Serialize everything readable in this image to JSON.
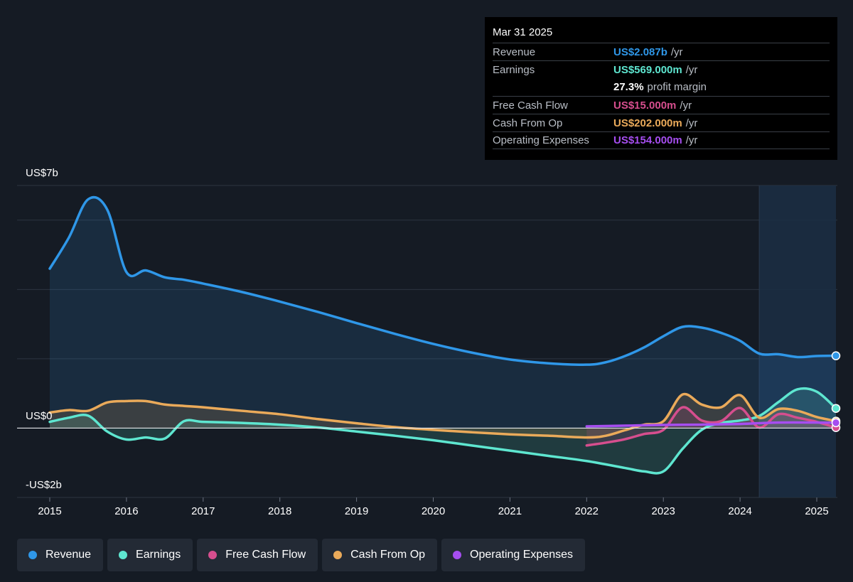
{
  "tooltip": {
    "date": "Mar 31 2025",
    "rows": [
      {
        "label": "Revenue",
        "value": "US$2.087b",
        "unit": "/yr",
        "color": "#2f97e8"
      },
      {
        "label": "Earnings",
        "value": "US$569.000m",
        "unit": "/yr",
        "color": "#5ee6d0"
      },
      {
        "label": "",
        "value": "27.3%",
        "unit": "profit margin",
        "color": "#ffffff"
      },
      {
        "label": "Free Cash Flow",
        "value": "US$15.000m",
        "unit": "/yr",
        "color": "#d64e8e"
      },
      {
        "label": "Cash From Op",
        "value": "US$202.000m",
        "unit": "/yr",
        "color": "#eaaa5a"
      },
      {
        "label": "Operating Expenses",
        "value": "US$154.000m",
        "unit": "/yr",
        "color": "#a64ef0"
      }
    ]
  },
  "legend": [
    {
      "label": "Revenue",
      "color": "#2f97e8"
    },
    {
      "label": "Earnings",
      "color": "#5ee6d0"
    },
    {
      "label": "Free Cash Flow",
      "color": "#d64e8e"
    },
    {
      "label": "Cash From Op",
      "color": "#eaaa5a"
    },
    {
      "label": "Operating Expenses",
      "color": "#a64ef0"
    }
  ],
  "chart_data": {
    "type": "area",
    "y_label_top": "US$7b",
    "y_label_zero": "US$0",
    "y_label_bottom": "-US$2b",
    "ylim": [
      -2.0,
      7.0
    ],
    "xlim": [
      2015.0,
      2025.25
    ],
    "x_ticks": [
      "2015",
      "2016",
      "2017",
      "2018",
      "2019",
      "2020",
      "2021",
      "2022",
      "2023",
      "2024",
      "2025"
    ],
    "forecast_region_start": 2024.25,
    "grid": true,
    "series": [
      {
        "name": "Revenue",
        "color": "#2f97e8",
        "fill": true,
        "points": [
          [
            2015.0,
            4.6
          ],
          [
            2015.25,
            5.5
          ],
          [
            2015.5,
            6.6
          ],
          [
            2015.75,
            6.3
          ],
          [
            2016.0,
            4.5
          ],
          [
            2016.25,
            4.55
          ],
          [
            2016.5,
            4.35
          ],
          [
            2016.75,
            4.28
          ],
          [
            2017.0,
            4.17
          ],
          [
            2017.5,
            3.93
          ],
          [
            2018.0,
            3.65
          ],
          [
            2018.5,
            3.35
          ],
          [
            2019.0,
            3.03
          ],
          [
            2019.5,
            2.72
          ],
          [
            2020.0,
            2.43
          ],
          [
            2020.5,
            2.18
          ],
          [
            2021.0,
            1.98
          ],
          [
            2021.5,
            1.87
          ],
          [
            2022.0,
            1.83
          ],
          [
            2022.25,
            1.9
          ],
          [
            2022.5,
            2.08
          ],
          [
            2022.75,
            2.33
          ],
          [
            2023.0,
            2.65
          ],
          [
            2023.25,
            2.92
          ],
          [
            2023.5,
            2.9
          ],
          [
            2023.75,
            2.75
          ],
          [
            2024.0,
            2.52
          ],
          [
            2024.25,
            2.15
          ],
          [
            2024.5,
            2.13
          ],
          [
            2024.75,
            2.05
          ],
          [
            2025.0,
            2.08
          ],
          [
            2025.25,
            2.087
          ]
        ]
      },
      {
        "name": "Earnings",
        "color": "#5ee6d0",
        "fill": true,
        "points": [
          [
            2015.0,
            0.18
          ],
          [
            2015.25,
            0.3
          ],
          [
            2015.5,
            0.36
          ],
          [
            2015.75,
            -0.1
          ],
          [
            2016.0,
            -0.33
          ],
          [
            2016.25,
            -0.27
          ],
          [
            2016.5,
            -0.3
          ],
          [
            2016.75,
            0.2
          ],
          [
            2017.0,
            0.18
          ],
          [
            2017.5,
            0.15
          ],
          [
            2018.0,
            0.1
          ],
          [
            2018.5,
            0.02
          ],
          [
            2019.0,
            -0.1
          ],
          [
            2019.5,
            -0.22
          ],
          [
            2020.0,
            -0.35
          ],
          [
            2020.5,
            -0.5
          ],
          [
            2021.0,
            -0.65
          ],
          [
            2021.5,
            -0.8
          ],
          [
            2022.0,
            -0.95
          ],
          [
            2022.5,
            -1.15
          ],
          [
            2022.75,
            -1.25
          ],
          [
            2023.0,
            -1.25
          ],
          [
            2023.25,
            -0.6
          ],
          [
            2023.5,
            -0.05
          ],
          [
            2023.75,
            0.15
          ],
          [
            2024.0,
            0.22
          ],
          [
            2024.25,
            0.35
          ],
          [
            2024.5,
            0.75
          ],
          [
            2024.75,
            1.12
          ],
          [
            2025.0,
            1.05
          ],
          [
            2025.25,
            0.569
          ]
        ]
      },
      {
        "name": "Cash From Op",
        "color": "#eaaa5a",
        "fill": true,
        "points": [
          [
            2015.0,
            0.45
          ],
          [
            2015.25,
            0.52
          ],
          [
            2015.5,
            0.5
          ],
          [
            2015.75,
            0.74
          ],
          [
            2016.0,
            0.78
          ],
          [
            2016.25,
            0.78
          ],
          [
            2016.5,
            0.68
          ],
          [
            2016.75,
            0.64
          ],
          [
            2017.0,
            0.6
          ],
          [
            2017.5,
            0.5
          ],
          [
            2018.0,
            0.4
          ],
          [
            2018.5,
            0.26
          ],
          [
            2019.0,
            0.14
          ],
          [
            2019.5,
            0.03
          ],
          [
            2020.0,
            -0.05
          ],
          [
            2020.5,
            -0.12
          ],
          [
            2021.0,
            -0.18
          ],
          [
            2021.5,
            -0.22
          ],
          [
            2022.0,
            -0.27
          ],
          [
            2022.25,
            -0.22
          ],
          [
            2022.5,
            -0.06
          ],
          [
            2022.75,
            0.1
          ],
          [
            2023.0,
            0.2
          ],
          [
            2023.25,
            0.97
          ],
          [
            2023.5,
            0.68
          ],
          [
            2023.75,
            0.6
          ],
          [
            2024.0,
            0.95
          ],
          [
            2024.25,
            0.3
          ],
          [
            2024.5,
            0.55
          ],
          [
            2024.75,
            0.5
          ],
          [
            2025.0,
            0.32
          ],
          [
            2025.25,
            0.202
          ]
        ]
      },
      {
        "name": "Free Cash Flow",
        "color": "#d64e8e",
        "fill": true,
        "points": [
          [
            2022.0,
            -0.5
          ],
          [
            2022.25,
            -0.42
          ],
          [
            2022.5,
            -0.32
          ],
          [
            2022.75,
            -0.17
          ],
          [
            2023.0,
            -0.05
          ],
          [
            2023.25,
            0.6
          ],
          [
            2023.5,
            0.22
          ],
          [
            2023.75,
            0.2
          ],
          [
            2024.0,
            0.58
          ],
          [
            2024.25,
            0.02
          ],
          [
            2024.5,
            0.4
          ],
          [
            2024.75,
            0.3
          ],
          [
            2025.0,
            0.18
          ],
          [
            2025.25,
            0.015
          ]
        ]
      },
      {
        "name": "Operating Expenses",
        "color": "#a64ef0",
        "fill": false,
        "points": [
          [
            2022.0,
            0.05
          ],
          [
            2022.5,
            0.07
          ],
          [
            2023.0,
            0.09
          ],
          [
            2023.5,
            0.1
          ],
          [
            2024.0,
            0.12
          ],
          [
            2024.5,
            0.16
          ],
          [
            2025.0,
            0.16
          ],
          [
            2025.25,
            0.154
          ]
        ]
      }
    ]
  }
}
